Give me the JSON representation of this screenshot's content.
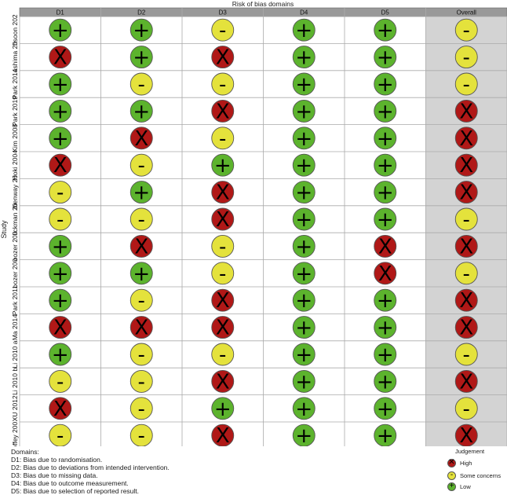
{
  "chart_data": {
    "type": "table",
    "title": "Risk of bias domains",
    "ylabel": "Study",
    "columns": [
      "D1",
      "D2",
      "D3",
      "D4",
      "D5",
      "Overall"
    ],
    "studies": [
      "hsoon 202",
      "ashima 20",
      "Park 2014",
      "Park 2019",
      "Kim 2008",
      "Hoki 2004",
      "ibenway 20",
      "lickman 20",
      "oozer 200",
      "oozer 200",
      "Park 2011",
      "Ma 2014",
      "Li 2010 a",
      "Li 2010 b",
      "XU 2012",
      "offey 200"
    ],
    "judgements": [
      [
        "low",
        "low",
        "some",
        "low",
        "low",
        "some"
      ],
      [
        "high",
        "low",
        "high",
        "low",
        "low",
        "some"
      ],
      [
        "low",
        "some",
        "some",
        "low",
        "low",
        "some"
      ],
      [
        "low",
        "low",
        "high",
        "low",
        "low",
        "high"
      ],
      [
        "low",
        "high",
        "some",
        "low",
        "low",
        "high"
      ],
      [
        "high",
        "some",
        "low",
        "low",
        "low",
        "high"
      ],
      [
        "some",
        "low",
        "high",
        "low",
        "low",
        "high"
      ],
      [
        "some",
        "some",
        "high",
        "low",
        "low",
        "some"
      ],
      [
        "low",
        "high",
        "some",
        "low",
        "high",
        "high"
      ],
      [
        "low",
        "low",
        "some",
        "low",
        "high",
        "some"
      ],
      [
        "low",
        "some",
        "high",
        "low",
        "low",
        "high"
      ],
      [
        "high",
        "high",
        "high",
        "low",
        "low",
        "high"
      ],
      [
        "low",
        "some",
        "some",
        "low",
        "low",
        "some"
      ],
      [
        "some",
        "some",
        "high",
        "low",
        "low",
        "high"
      ],
      [
        "high",
        "some",
        "low",
        "low",
        "low",
        "some"
      ],
      [
        "some",
        "some",
        "high",
        "low",
        "low",
        "high"
      ]
    ],
    "symbols": {
      "low": "+",
      "some": "-",
      "high": "X"
    },
    "colors": {
      "low": "#5cb32d",
      "some": "#e4e23c",
      "high": "#b01817",
      "header_bg": "#999999",
      "overall_bg": "#d3d3d3",
      "grid": "#aaaaaa"
    }
  },
  "footer": {
    "heading": "Domains:",
    "lines": [
      "D1: Bias due to randomisation.",
      "D2: Bias due to deviations from intended intervention.",
      "D3: Bias due to missing data.",
      "D4: Bias due to outcome measurement.",
      "D5: Bias due to selection of reported result."
    ]
  },
  "legend": {
    "title": "Judgement",
    "items": [
      {
        "key": "high",
        "label": "High"
      },
      {
        "key": "some",
        "label": "Some concerns"
      },
      {
        "key": "low",
        "label": "Low"
      }
    ]
  }
}
